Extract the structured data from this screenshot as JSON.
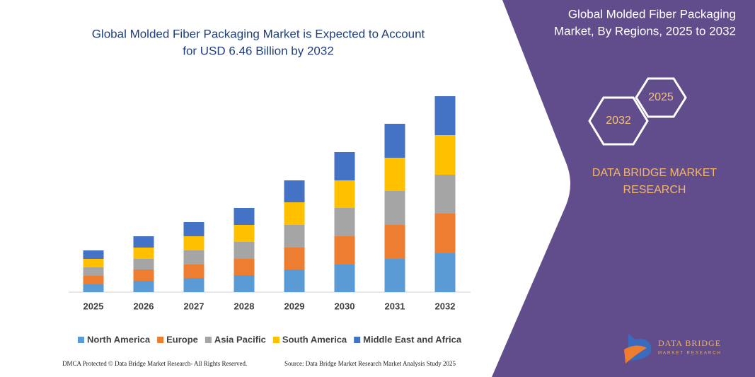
{
  "chart_data": {
    "type": "stacked_bar",
    "title": [
      "Global Molded Fiber Packaging Market is Expected to Account",
      "for USD 6.46 Billion by 2032"
    ],
    "categories": [
      "2025",
      "2026",
      "2027",
      "2028",
      "2029",
      "2030",
      "2031",
      "2032"
    ],
    "series": [
      {
        "name": "North America",
        "color": "#5b9bd5",
        "values": [
          11,
          16,
          20,
          24,
          32,
          39,
          47,
          55
        ]
      },
      {
        "name": "Europe",
        "color": "#ed7d31",
        "values": [
          12,
          16,
          19,
          23,
          31,
          40,
          48,
          56
        ]
      },
      {
        "name": "Asia Pacific",
        "color": "#a5a5a5",
        "values": [
          12,
          15,
          20,
          24,
          32,
          40,
          48,
          55
        ]
      },
      {
        "name": "South America",
        "color": "#ffc000",
        "values": [
          12,
          16,
          20,
          24,
          32,
          39,
          47,
          56
        ]
      },
      {
        "name": "Middle East and Africa",
        "color": "#4472c4",
        "values": [
          12,
          16,
          20,
          24,
          31,
          40,
          48,
          55
        ]
      }
    ],
    "ylim": [
      0,
      290
    ],
    "legend": "bottom"
  },
  "panel": {
    "title": [
      "Global Molded Fiber Packaging",
      "Market, By Regions, 2025 to 2032"
    ],
    "hex_left": "2032",
    "hex_right": "2025",
    "brand": [
      "DATA BRIDGE MARKET",
      "RESEARCH"
    ],
    "logo": [
      "DATA BRIDGE",
      "MARKET RESEARCH"
    ]
  },
  "footer": {
    "left": "DMCA Protected © Data Bridge Market Research- All Rights Reserved.",
    "right": "Source: Data Bridge Market Research Market Analysis Study 2025"
  }
}
